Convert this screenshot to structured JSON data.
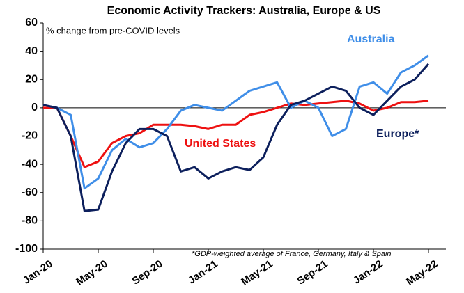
{
  "chart_data": {
    "type": "line",
    "title": "Economic Activity Trackers: Australia, Europe & US",
    "annotations": [
      "% change from pre-COVID levels",
      "*GDP-weighted average of France, Germany, Italy & Spain"
    ],
    "categories": [
      "Jan-20",
      null,
      null,
      null,
      "May-20",
      null,
      null,
      null,
      "Sep-20",
      null,
      null,
      null,
      "Jan-21",
      null,
      null,
      null,
      "May-21",
      null,
      null,
      null,
      "Sep-21",
      null,
      null,
      null,
      "Jan-22",
      null,
      null,
      null,
      "May-22"
    ],
    "series": [
      {
        "name": "Australia",
        "color": "#3f8ee8",
        "values": [
          2,
          0,
          -5,
          -57,
          -50,
          -30,
          -22,
          -28,
          -25,
          -15,
          -2,
          2,
          0,
          -2,
          5,
          12,
          15,
          18,
          0,
          5,
          0,
          -20,
          -15,
          15,
          18,
          10,
          25,
          30,
          37
        ]
      },
      {
        "name": "Europe*",
        "color": "#0c1f5c",
        "values": [
          2,
          0,
          -20,
          -73,
          -72,
          -45,
          -25,
          -15,
          -15,
          -20,
          -45,
          -42,
          -50,
          -45,
          -42,
          -44,
          -35,
          -12,
          2,
          5,
          10,
          15,
          12,
          0,
          -5,
          5,
          15,
          20,
          31
        ]
      },
      {
        "name": "United States",
        "color": "#ee1111",
        "values": [
          0,
          0,
          -20,
          -42,
          -38,
          -25,
          -20,
          -18,
          -12,
          -12,
          -12,
          -13,
          -15,
          -12,
          -12,
          -5,
          -3,
          0,
          3,
          2,
          3,
          4,
          5,
          3,
          -2,
          0,
          4,
          4,
          5
        ]
      }
    ],
    "ylim": [
      -100,
      60
    ],
    "yticks": [
      -100,
      -80,
      -60,
      -40,
      -20,
      0,
      20,
      40,
      60
    ]
  }
}
